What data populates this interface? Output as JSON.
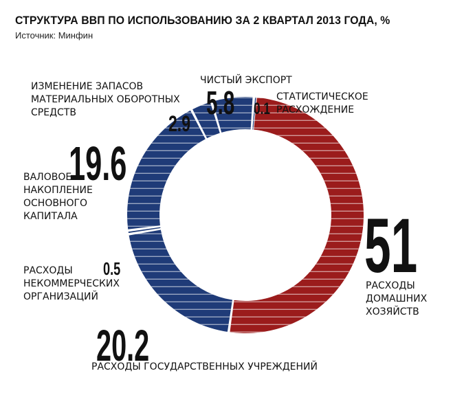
{
  "header": {
    "title": "СТРУКТУРА ВВП ПО ИСПОЛЬЗОВАНИЮ ЗА 2 КВАРТАЛ 2013 ГОДА, %",
    "source": "Источник: Минфин"
  },
  "chart_data": {
    "type": "pie",
    "title": "СТРУКТУРА ВВП ПО ИСПОЛЬЗОВАНИЮ ЗА 2 КВАРТАЛ 2013 ГОДА, %",
    "slices": [
      {
        "value_label": "51",
        "value": 51,
        "label": [
          "РАСХОДЫ",
          "ДОМАШНИХ",
          "ХОЗЯЙСТВ"
        ],
        "color": "#9b1c1c"
      },
      {
        "value_label": "20.2",
        "value": 20.2,
        "label": [
          "РАСХОДЫ ГОСУДАРСТВЕННЫХ УЧРЕЖДЕНИЙ"
        ],
        "color": "#1f3b78"
      },
      {
        "value_label": "0.5",
        "value": 0.5,
        "label": [
          "РАСХОДЫ",
          "НЕКОММЕРЧЕСКИХ",
          "ОРГАНИЗАЦИЙ"
        ],
        "color": "#1f3b78"
      },
      {
        "value_label": "19.6",
        "value": 19.6,
        "label": [
          "ВАЛОВОЕ",
          "НАКОПЛЕНИЕ",
          "ОСНОВНОГО",
          "КАПИТАЛА"
        ],
        "color": "#1f3b78"
      },
      {
        "value_label": "2.9",
        "value": 2.9,
        "label": [
          "ИЗМЕНЕНИЕ ЗАПАСОВ",
          "МАТЕРИАЛЬНЫХ ОБОРОТНЫХ",
          "СРЕДСТВ"
        ],
        "color": "#1f3b78"
      },
      {
        "value_label": "5.8",
        "value": 5.8,
        "label": [
          "ЧИСТЫЙ ЭКСПОРТ"
        ],
        "color": "#1f3b78"
      },
      {
        "value_label": "0.1",
        "value": 0.1,
        "label": [
          "СТАТИСТИЧЕСКОЕ",
          "РАСХОЖДЕНИЕ"
        ],
        "color": "#1f3b78"
      }
    ]
  }
}
